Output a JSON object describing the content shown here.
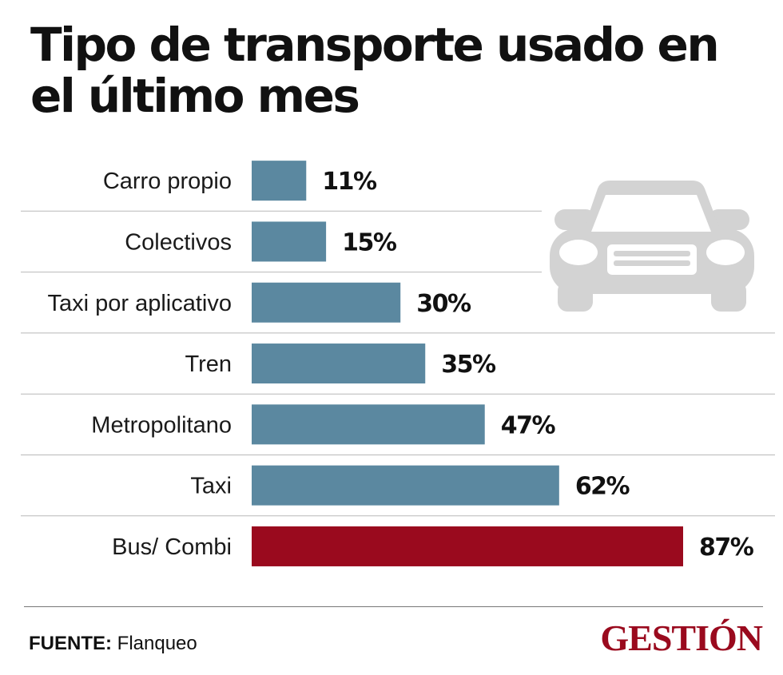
{
  "title": "Tipo de transporte usado en el último mes",
  "chart_data": {
    "type": "bar",
    "orientation": "horizontal",
    "title": "Tipo de transporte usado en el último mes",
    "categories": [
      "Carro propio",
      "Colectivos",
      "Taxi por aplicativo",
      "Tren",
      "Metropolitano",
      "Taxi",
      "Bus/ Combi"
    ],
    "values": [
      11,
      15,
      30,
      35,
      47,
      62,
      87
    ],
    "value_labels": [
      "11%",
      "15%",
      "30%",
      "35%",
      "47%",
      "62%",
      "87%"
    ],
    "unit": "%",
    "xlim": [
      0,
      87
    ],
    "bar_colors": [
      "#5b88a0",
      "#5b88a0",
      "#5b88a0",
      "#5b88a0",
      "#5b88a0",
      "#5b88a0",
      "#9a0a1e"
    ],
    "highlight": "Bus/ Combi"
  },
  "decoration": {
    "icon": "car-icon",
    "icon_color": "#d3d3d3"
  },
  "source": {
    "label": "FUENTE:",
    "text": "Flanqueo"
  },
  "brand": {
    "logo_text": "GESTIÓN",
    "color": "#9a0a1e"
  }
}
